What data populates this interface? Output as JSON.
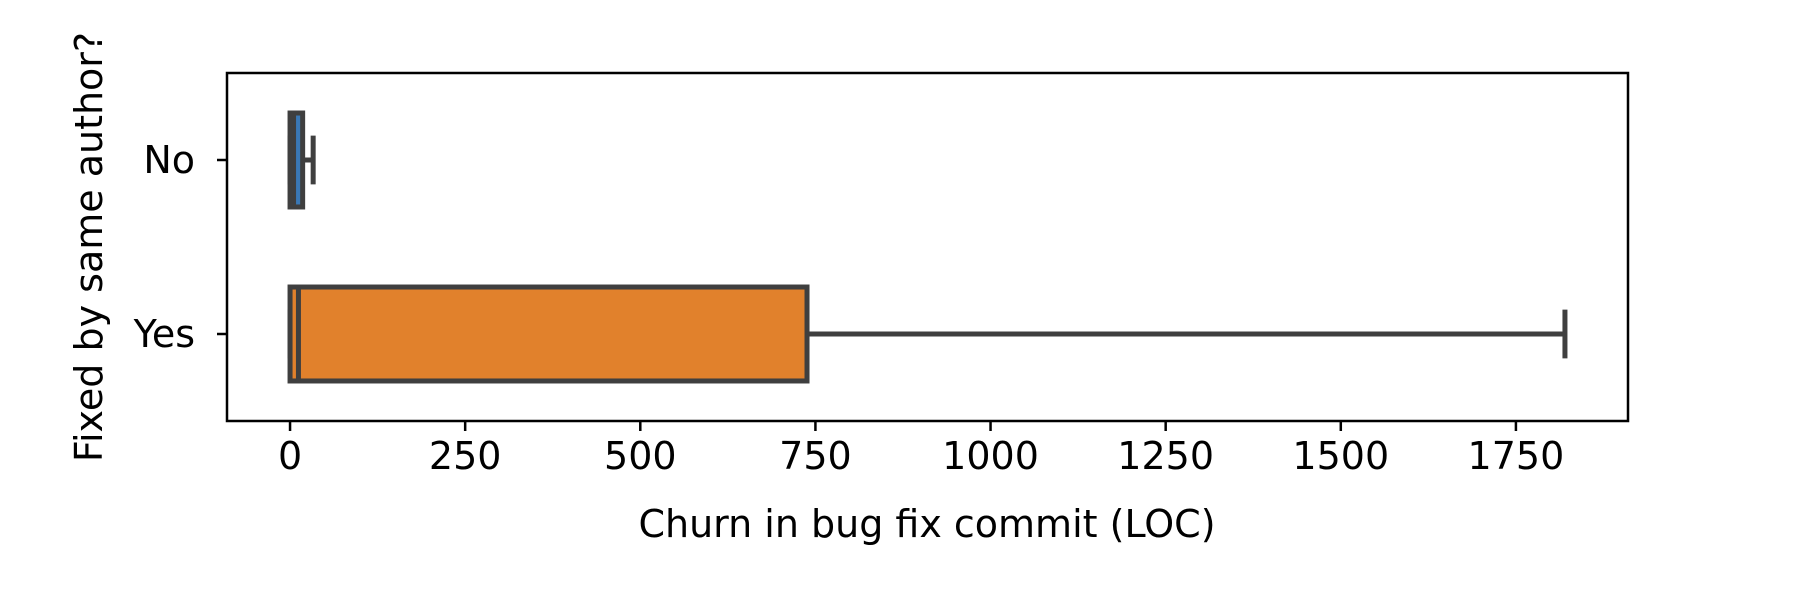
{
  "chart_data": {
    "type": "boxplot",
    "orientation": "horizontal",
    "xlabel": "Churn in bug fix commit (LOC)",
    "ylabel": "Fixed by same author?",
    "xlim": [
      -90,
      1910
    ],
    "xticks": [
      0,
      250,
      500,
      750,
      1000,
      1250,
      1500,
      1750
    ],
    "categories": [
      "No",
      "Yes"
    ],
    "boxes": [
      {
        "category": "No",
        "whisker_low": 0,
        "q1": 0,
        "median": 5,
        "q3": 18,
        "whisker_high": 33,
        "color": "#3a78b5"
      },
      {
        "category": "Yes",
        "whisker_low": 0,
        "q1": 0,
        "median": 12,
        "q3": 738,
        "whisker_high": 1820,
        "color": "#e1812c"
      }
    ],
    "grid": false
  }
}
